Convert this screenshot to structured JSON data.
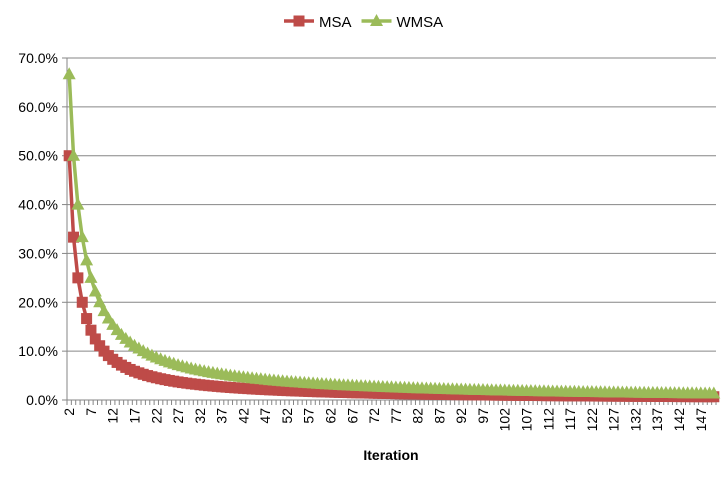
{
  "chart_data": {
    "type": "line",
    "title": "",
    "xlabel": "Iteration",
    "ylabel": "",
    "ylim": [
      0,
      70
    ],
    "y_tick_labels": [
      "0.0%",
      "10.0%",
      "20.0%",
      "30.0%",
      "40.0%",
      "50.0%",
      "60.0%",
      "70.0%"
    ],
    "y_ticks": [
      0,
      10,
      20,
      30,
      40,
      50,
      60,
      70
    ],
    "y_unit": "%",
    "x_tick_label_every": 5,
    "grid": "horizontal",
    "legend_position": "top",
    "categories": [
      2,
      3,
      4,
      5,
      6,
      7,
      8,
      9,
      10,
      11,
      12,
      13,
      14,
      15,
      16,
      17,
      18,
      19,
      20,
      21,
      22,
      23,
      24,
      25,
      26,
      27,
      28,
      29,
      30,
      31,
      32,
      33,
      34,
      35,
      36,
      37,
      38,
      39,
      40,
      41,
      42,
      43,
      44,
      45,
      46,
      47,
      48,
      49,
      50,
      51,
      52,
      53,
      54,
      55,
      56,
      57,
      58,
      59,
      60,
      61,
      62,
      63,
      64,
      65,
      66,
      67,
      68,
      69,
      70,
      71,
      72,
      73,
      74,
      75,
      76,
      77,
      78,
      79,
      80,
      81,
      82,
      83,
      84,
      85,
      86,
      87,
      88,
      89,
      90,
      91,
      92,
      93,
      94,
      95,
      96,
      97,
      98,
      99,
      100,
      101,
      102,
      103,
      104,
      105,
      106,
      107,
      108,
      109,
      110,
      111,
      112,
      113,
      114,
      115,
      116,
      117,
      118,
      119,
      120,
      121,
      122,
      123,
      124,
      125,
      126,
      127,
      128,
      129,
      130,
      131,
      132,
      133,
      134,
      135,
      136,
      137,
      138,
      139,
      140,
      141,
      142,
      143,
      144,
      145,
      146,
      147,
      148,
      149,
      150
    ],
    "series": [
      {
        "name": "MSA",
        "color": "#be4b48",
        "marker": "square",
        "values": [
          50,
          33.33,
          25,
          20,
          16.67,
          14.29,
          12.5,
          11.11,
          10,
          9.09,
          8.33,
          7.69,
          7.14,
          6.67,
          6.25,
          5.88,
          5.56,
          5.26,
          5,
          4.76,
          4.55,
          4.35,
          4.17,
          4,
          3.85,
          3.7,
          3.57,
          3.45,
          3.33,
          3.23,
          3.13,
          3.03,
          2.94,
          2.86,
          2.78,
          2.7,
          2.63,
          2.56,
          2.5,
          2.44,
          2.38,
          2.33,
          2.27,
          2.22,
          2.17,
          2.13,
          2.08,
          2.04,
          2,
          1.96,
          1.92,
          1.89,
          1.85,
          1.82,
          1.79,
          1.75,
          1.72,
          1.69,
          1.67,
          1.64,
          1.61,
          1.59,
          1.56,
          1.54,
          1.52,
          1.49,
          1.47,
          1.45,
          1.43,
          1.41,
          1.39,
          1.37,
          1.35,
          1.33,
          1.32,
          1.3,
          1.28,
          1.27,
          1.25,
          1.23,
          1.22,
          1.2,
          1.19,
          1.18,
          1.16,
          1.15,
          1.14,
          1.12,
          1.11,
          1.1,
          1.09,
          1.08,
          1.06,
          1.05,
          1.04,
          1.03,
          1.02,
          1.01,
          1,
          0.99,
          0.98,
          0.97,
          0.96,
          0.95,
          0.94,
          0.93,
          0.93,
          0.92,
          0.91,
          0.9,
          0.89,
          0.88,
          0.88,
          0.87,
          0.86,
          0.85,
          0.85,
          0.84,
          0.83,
          0.83,
          0.82,
          0.81,
          0.81,
          0.8,
          0.79,
          0.79,
          0.78,
          0.78,
          0.77,
          0.76,
          0.76,
          0.75,
          0.75,
          0.74,
          0.74,
          0.73,
          0.72,
          0.72,
          0.71,
          0.71,
          0.7,
          0.7,
          0.69,
          0.69,
          0.68,
          0.68,
          0.68,
          0.67,
          0.67
        ]
      },
      {
        "name": "WMSA",
        "color": "#9bbb59",
        "marker": "triangle",
        "values": [
          66.67,
          50,
          40,
          33.33,
          28.57,
          25,
          22.22,
          20,
          18.18,
          16.67,
          15.38,
          14.29,
          13.33,
          12.5,
          11.76,
          11.11,
          10.53,
          10,
          9.52,
          9.09,
          8.7,
          8.33,
          8,
          7.69,
          7.41,
          7.14,
          6.9,
          6.67,
          6.45,
          6.25,
          6.06,
          5.88,
          5.71,
          5.56,
          5.41,
          5.26,
          5.13,
          5,
          4.88,
          4.76,
          4.65,
          4.55,
          4.44,
          4.35,
          4.26,
          4.17,
          4.08,
          4,
          3.92,
          3.85,
          3.77,
          3.7,
          3.64,
          3.57,
          3.51,
          3.45,
          3.39,
          3.33,
          3.28,
          3.23,
          3.17,
          3.13,
          3.08,
          3.03,
          2.99,
          2.94,
          2.9,
          2.86,
          2.82,
          2.78,
          2.74,
          2.7,
          2.67,
          2.63,
          2.6,
          2.56,
          2.53,
          2.5,
          2.47,
          2.44,
          2.41,
          2.38,
          2.35,
          2.33,
          2.3,
          2.27,
          2.25,
          2.22,
          2.2,
          2.17,
          2.15,
          2.13,
          2.11,
          2.08,
          2.06,
          2.04,
          2.02,
          2,
          1.98,
          1.96,
          1.94,
          1.92,
          1.9,
          1.89,
          1.87,
          1.85,
          1.83,
          1.82,
          1.8,
          1.79,
          1.77,
          1.75,
          1.74,
          1.72,
          1.71,
          1.69,
          1.68,
          1.67,
          1.65,
          1.64,
          1.63,
          1.61,
          1.6,
          1.59,
          1.57,
          1.56,
          1.55,
          1.54,
          1.53,
          1.52,
          1.5,
          1.49,
          1.48,
          1.47,
          1.46,
          1.45,
          1.44,
          1.43,
          1.42,
          1.41,
          1.4,
          1.39,
          1.38,
          1.37,
          1.36,
          1.35,
          1.34,
          1.33,
          1.32
        ]
      }
    ]
  }
}
